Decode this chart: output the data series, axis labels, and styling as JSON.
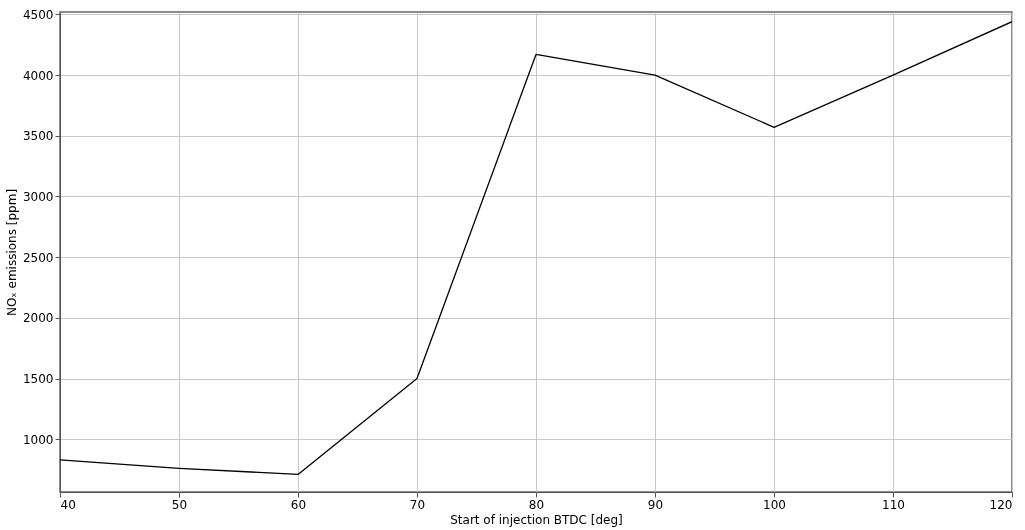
{
  "chart_data": {
    "type": "line",
    "xlabel": "Start of injection BTDC [deg]",
    "ylabel": "NOₓ emissions [ppm]",
    "x": [
      40,
      50,
      60,
      70,
      80,
      90,
      100,
      110,
      120
    ],
    "series": [
      {
        "color": "#000000",
        "values": [
          830,
          760,
          710,
          1500,
          4170,
          4000,
          3570,
          4000,
          4440
        ]
      }
    ],
    "xlim": [
      40,
      120
    ],
    "xticks": [
      40,
      50,
      60,
      70,
      80,
      90,
      100,
      110,
      120
    ],
    "ylim": [
      565,
      4520
    ],
    "yticks": [
      1000,
      1500,
      2000,
      2500,
      3000,
      3500,
      4000,
      4500
    ],
    "grid": true,
    "legend": false,
    "marker": "none",
    "line_style": "solid"
  }
}
